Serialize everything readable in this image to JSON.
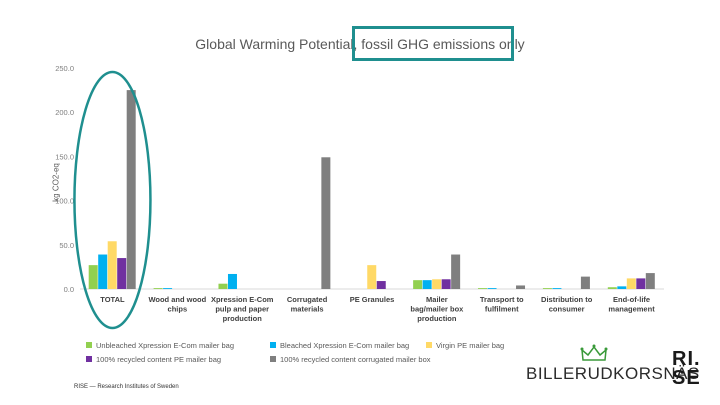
{
  "slide": {
    "title": "Global Warming Potential, fossil GHG emissions only",
    "footer": "RISE — Research Institutes of Sweden",
    "brand": "BILLERUDKORSNÄS",
    "rise_logo_lines": [
      "RI.",
      "SE"
    ],
    "crown_icon": "crown-icon"
  },
  "chart_data": {
    "type": "bar",
    "title": "Global Warming Potential, fossil GHG emissions only",
    "ylabel": "kg CO2-eq",
    "xlabel": "",
    "ylim": [
      0,
      250
    ],
    "yticks": [
      "0.0",
      "50.0",
      "100.0",
      "150.0",
      "200.0",
      "250.0"
    ],
    "grid": false,
    "legend_position": "bottom",
    "categories": [
      [
        "TOTAL"
      ],
      [
        "Wood and wood",
        "chips"
      ],
      [
        "Xpression E-Com",
        "pulp and paper",
        "production"
      ],
      [
        "Corrugated",
        "materials"
      ],
      [
        "PE Granules"
      ],
      [
        "Mailer",
        "bag/mailer box",
        "production"
      ],
      [
        "Transport to",
        "fulfilment"
      ],
      [
        "Distribution to",
        "consumer"
      ],
      [
        "End-of-life",
        "management"
      ]
    ],
    "series": [
      {
        "name": "Unbleached Xpression E-Com mailer bag",
        "color": "#92d050",
        "values": [
          27,
          1,
          6,
          0,
          0,
          10,
          1,
          1,
          2
        ]
      },
      {
        "name": "Bleached Xpression E-Com mailer bag",
        "color": "#00b0f0",
        "values": [
          39,
          1,
          17,
          0,
          0,
          10,
          1,
          1,
          3
        ]
      },
      {
        "name": "Virgin PE mailer bag",
        "color": "#ffd966",
        "values": [
          54,
          0,
          0,
          0,
          27,
          11,
          0,
          0,
          12
        ]
      },
      {
        "name": "100% recycled content PE mailer bag",
        "color": "#7030a0",
        "values": [
          35,
          0,
          0,
          0,
          9,
          11,
          0,
          0,
          12
        ]
      },
      {
        "name": "100% recycled content corrugated mailer box",
        "color": "#7f7f7f",
        "values": [
          225,
          0,
          0,
          149,
          0,
          39,
          4,
          14,
          18
        ]
      }
    ],
    "annotations": [
      {
        "type": "ellipse",
        "color": "#1f8f8f",
        "around_category": "TOTAL"
      },
      {
        "type": "box",
        "color": "#1f8f8f",
        "around_text": "fossil GHG emissions only"
      }
    ]
  }
}
